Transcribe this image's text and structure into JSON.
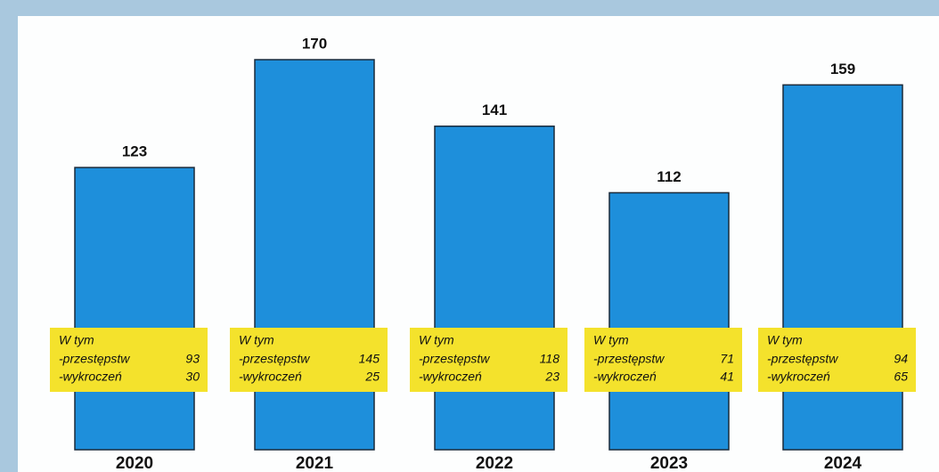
{
  "chart_data": {
    "type": "bar",
    "categories": [
      "2020",
      "2021",
      "2022",
      "2023",
      "2024"
    ],
    "values": [
      123,
      170,
      141,
      112,
      159
    ],
    "color": "#1e8fdb",
    "breakdown_title": "W tym",
    "breakdown": [
      {
        "name": "-przestępstw",
        "values": [
          93,
          145,
          118,
          71,
          94
        ]
      },
      {
        "name": "-wykroczeń",
        "values": [
          30,
          25,
          23,
          41,
          65
        ]
      }
    ],
    "breakdown_color": "#f4e22c"
  }
}
